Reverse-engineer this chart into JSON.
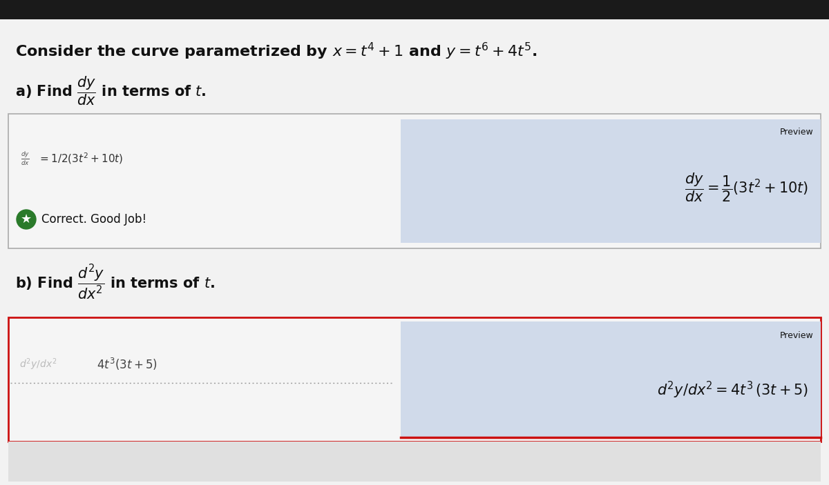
{
  "bg_color": "#f0f0f0",
  "top_bar_color": "#1a1a1a",
  "title_text": "Consider the curve parametrized by $x = t^4 + 1$ and $y = t^6 + 4t^5$.",
  "box_a_bg": "#f5f5f5",
  "box_a_border": "#aaaaaa",
  "box_b_bg": "#f5f5f5",
  "box_b_border": "#cc1111",
  "preview_box_bg": "#d0daea",
  "preview_label": "Preview",
  "preview_a_math": "$\\dfrac{dy}{dx} = \\dfrac{1}{2}\\left(3t^2 + 10t\\right)$",
  "preview_b_math": "$d^2y/dx^2 = 4t^3\\,(3t+5)$",
  "answer_a_small": "$\\dfrac{dy}{dx}$",
  "answer_a_text": "$= 1/2(3t^2+10t)$",
  "answer_b_faded_label": "$d^2y/dx^2$",
  "answer_b_text": "$4t^3(3t+5)$",
  "correct_text": "Correct. Good Job!",
  "correct_bg": "#2a7a2a",
  "dotted_line_color": "#999999",
  "font_color": "#111111",
  "faded_color": "#bbbbbb"
}
